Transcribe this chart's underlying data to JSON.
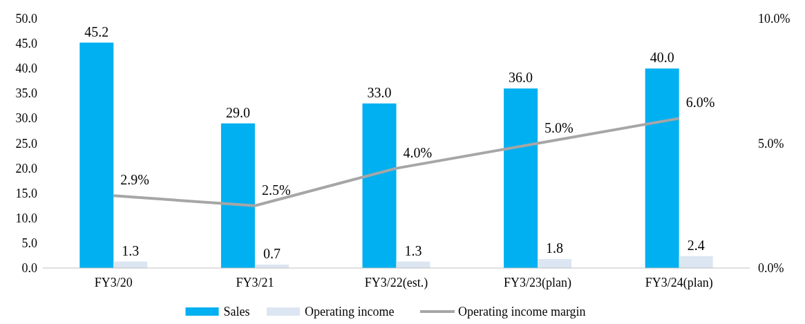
{
  "chart_data": {
    "type": "bar",
    "categories": [
      "FY3/20",
      "FY3/21",
      "FY3/22(est.)",
      "FY3/23(plan)",
      "FY3/24(plan)"
    ],
    "series": [
      {
        "name": "Sales",
        "color": "#00b0f0",
        "values": [
          45.2,
          29.0,
          33.0,
          36.0,
          40.0
        ],
        "value_labels": [
          "45.2",
          "29.0",
          "33.0",
          "36.0",
          "40.0"
        ]
      },
      {
        "name": "Operating income",
        "color": "#dce6f2",
        "values": [
          1.3,
          0.7,
          1.3,
          1.8,
          2.4
        ],
        "value_labels": [
          "1.3",
          "0.7",
          "1.3",
          "1.8",
          "2.4"
        ]
      },
      {
        "name": "Operating income margin",
        "type": "line",
        "axis": "y2",
        "color": "#a6a6a6",
        "values": [
          2.9,
          2.5,
          4.0,
          5.0,
          6.0
        ],
        "value_labels": [
          "2.9%",
          "2.5%",
          "4.0%",
          "5.0%",
          "6.0%"
        ]
      }
    ],
    "ylim": [
      0,
      50
    ],
    "yticks": [
      {
        "value": 0,
        "label": "0.0"
      },
      {
        "value": 5,
        "label": "5.0"
      },
      {
        "value": 10,
        "label": "10.0"
      },
      {
        "value": 15,
        "label": "15.0"
      },
      {
        "value": 20,
        "label": "20.0"
      },
      {
        "value": 25,
        "label": "25.0"
      },
      {
        "value": 30,
        "label": "30.0"
      },
      {
        "value": 35,
        "label": "35.0"
      },
      {
        "value": 40,
        "label": "40.0"
      },
      {
        "value": 45,
        "label": "45.0"
      },
      {
        "value": 50,
        "label": "50.0"
      }
    ],
    "y2lim": [
      0,
      10
    ],
    "y2ticks": [
      {
        "value": 0,
        "label": "0.0%"
      },
      {
        "value": 5,
        "label": "5.0%"
      },
      {
        "value": 10,
        "label": "10.0%"
      }
    ],
    "legend": "bottom",
    "grid": false,
    "marker": "none",
    "line_style": "solid"
  }
}
